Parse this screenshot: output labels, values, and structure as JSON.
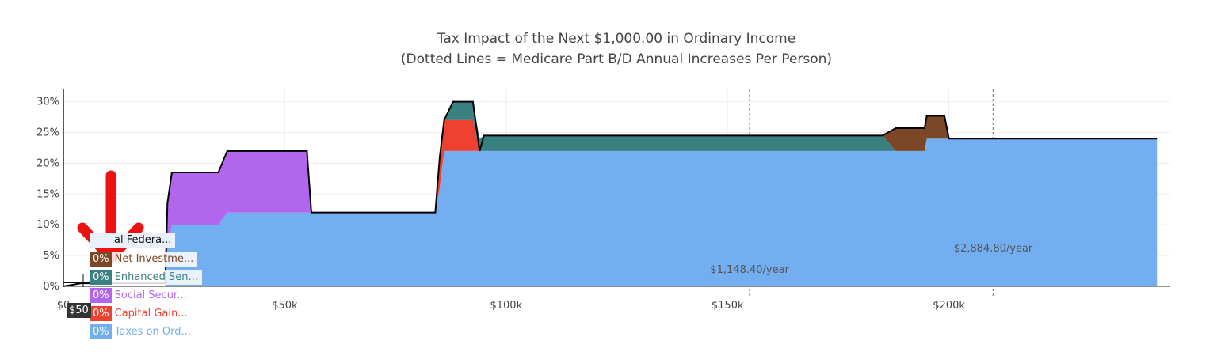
{
  "chart_data": {
    "type": "area",
    "title": "Tax Impact of the Next $1,000.00 in Ordinary Income",
    "subtitle": "(Dotted Lines = Medicare Part B/D Annual Increases Per Person)",
    "xlim": [
      0,
      250000
    ],
    "ylim": [
      0,
      0.32
    ],
    "x_ticks": [
      0,
      50000,
      100000,
      150000,
      200000
    ],
    "x_tick_labels": [
      "$0",
      "$50k",
      "$100k",
      "$150k",
      "$200k"
    ],
    "y_ticks": [
      0,
      0.05,
      0.1,
      0.15,
      0.2,
      0.25,
      0.3
    ],
    "y_tick_labels": [
      "0%",
      "5%",
      "10%",
      "15%",
      "20%",
      "25%",
      "30%"
    ],
    "x": [
      0,
      4000,
      5000,
      23000,
      23500,
      24500,
      35000,
      37000,
      38000,
      51000,
      55000,
      56000,
      84000,
      85000,
      86000,
      88000,
      89000,
      91500,
      92500,
      94000,
      95000,
      96000,
      100000,
      185000,
      188000,
      194000,
      194500,
      195000,
      196000,
      199000,
      200000,
      247000
    ],
    "series": [
      {
        "name": "Taxes on Ord...",
        "color": "#73aff0",
        "values": [
          0,
          0,
          0,
          0,
          0.06,
          0.1,
          0.1,
          0.12,
          0.12,
          0.12,
          0.12,
          0.12,
          0.12,
          0.16,
          0.22,
          0.22,
          0.22,
          0.22,
          0.22,
          0.22,
          0.22,
          0.22,
          0.22,
          0.22,
          0.22,
          0.22,
          0.22,
          0.24,
          0.24,
          0.24,
          0.24,
          0.24
        ]
      },
      {
        "name": "Capital Gain...",
        "color": "#ef4131",
        "values": [
          0,
          0,
          0,
          0,
          0,
          0,
          0,
          0,
          0,
          0,
          0,
          0,
          0,
          0.05,
          0.05,
          0.05,
          0.05,
          0.05,
          0.05,
          0,
          0,
          0,
          0,
          0,
          0,
          0,
          0,
          0,
          0,
          0,
          0,
          0
        ]
      },
      {
        "name": "Social Secur...",
        "color": "#b266ee",
        "values": [
          0,
          0,
          0,
          0,
          0.075,
          0.085,
          0.085,
          0.1,
          0.1,
          0.1,
          0.1,
          0,
          0,
          0,
          0,
          0,
          0,
          0,
          0,
          0,
          0,
          0,
          0,
          0,
          0,
          0,
          0,
          0,
          0,
          0,
          0,
          0
        ]
      },
      {
        "name": "Enhanced Sen...",
        "color": "#3a8080",
        "values": [
          0,
          0,
          0,
          0,
          0,
          0,
          0,
          0,
          0,
          0,
          0,
          0,
          0,
          0,
          0,
          0.03,
          0.03,
          0.03,
          0.03,
          0.02,
          0.025,
          0.025,
          0.025,
          0.025,
          0,
          0,
          0,
          0,
          0,
          0,
          0,
          0
        ]
      },
      {
        "name": "Net Investme...",
        "color": "#7b4726",
        "values": [
          0,
          0,
          0,
          0,
          0,
          0,
          0,
          0,
          0,
          0,
          0,
          0,
          0,
          0,
          0,
          0,
          0,
          0,
          0,
          0,
          0,
          0,
          0,
          0,
          0.037,
          0.037,
          0.037,
          0.037,
          0.037,
          0.037,
          0,
          0
        ]
      },
      {
        "name": "al Federa...",
        "color": "#000000",
        "values": [
          0,
          0.005,
          0.005,
          0.005,
          0.135,
          0.185,
          0.185,
          0.22,
          0.22,
          0.22,
          0.22,
          0.12,
          0.12,
          0.21,
          0.27,
          0.3,
          0.3,
          0.3,
          0.3,
          0.22,
          0.245,
          0.245,
          0.245,
          0.245,
          0.257,
          0.257,
          0.257,
          0.277,
          0.277,
          0.277,
          0.24,
          0.24
        ]
      }
    ],
    "hover_percents": [
      "0%",
      "0%",
      "0%",
      "0%",
      "0%"
    ],
    "hover_x_label": "$50",
    "annotations": [
      {
        "text": "$1,148.40/year",
        "x": 155000
      },
      {
        "text": "$2,884.80/year",
        "x": 210000
      }
    ],
    "grid": true,
    "arrow_color": "#ee1111"
  }
}
